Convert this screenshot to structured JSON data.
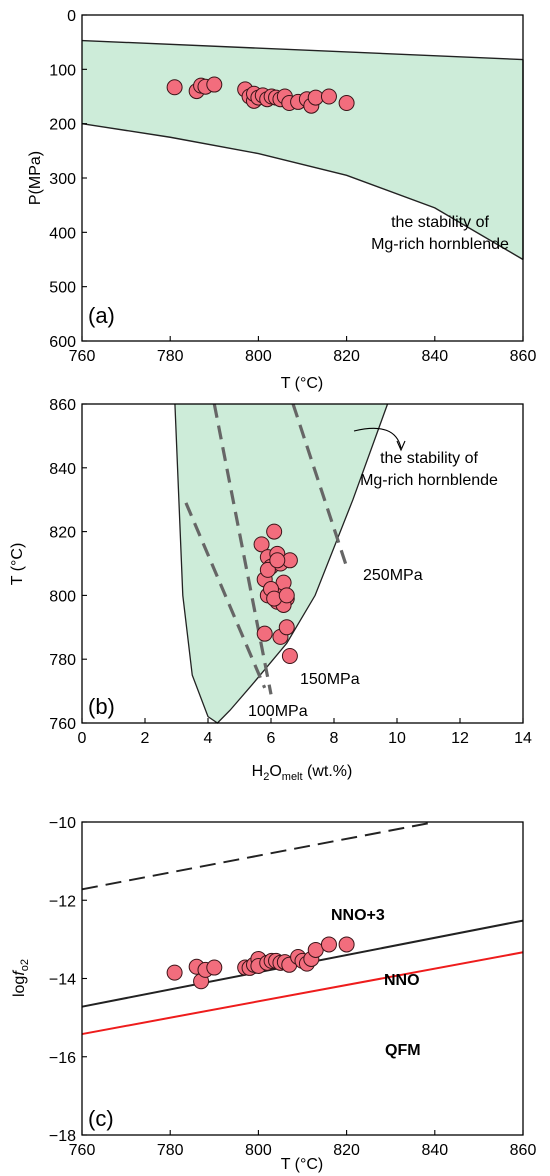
{
  "colors": {
    "field_fill": "#cdecd9",
    "point_fill": "#f26d7d",
    "point_stroke": "#3a1418",
    "dashed_line": "#666666",
    "qfm_line": "#ee1c1c",
    "nno_line": "#222222"
  },
  "chart_data": [
    {
      "type": "scatter",
      "panel": "(a)",
      "xlabel": "T (°C)",
      "ylabel": "P(MPa)",
      "xlim": [
        760,
        860
      ],
      "ylim": [
        0,
        600
      ],
      "y_inverted": true,
      "x_ticks": [
        "760",
        "780",
        "800",
        "820",
        "840",
        "860"
      ],
      "y_ticks": [
        "0",
        "100",
        "200",
        "300",
        "400",
        "500",
        "600"
      ],
      "field": {
        "label": [
          "the stability of",
          "Mg-rich hornblende"
        ],
        "upper_boundary": [
          [
            760,
            47
          ],
          [
            860,
            82
          ]
        ],
        "lower_boundary": [
          [
            760,
            200
          ],
          [
            780,
            225
          ],
          [
            800,
            255
          ],
          [
            820,
            295
          ],
          [
            840,
            355
          ],
          [
            860,
            450
          ]
        ]
      },
      "series": [
        {
          "x": [
            781,
            786,
            787,
            788,
            790,
            797,
            798,
            799,
            799,
            800,
            801,
            802,
            803,
            804,
            805,
            806,
            807,
            809,
            811,
            812,
            813,
            816,
            820
          ],
          "y": [
            133,
            140,
            130,
            132,
            128,
            137,
            150,
            158,
            145,
            152,
            148,
            155,
            150,
            152,
            155,
            150,
            162,
            160,
            155,
            167,
            152,
            150,
            162
          ]
        }
      ]
    },
    {
      "type": "scatter",
      "panel": "(b)",
      "xlabel_main": "H",
      "xlabel_sub1": "2",
      "xlabel_mid": "O",
      "xlabel_sub2": "melt",
      "xlabel_tail": " (wt.%)",
      "ylabel": "T (°C)",
      "xlim": [
        0,
        14
      ],
      "ylim": [
        760,
        860
      ],
      "x_ticks": [
        "0",
        "2",
        "4",
        "6",
        "8",
        "10",
        "12",
        "14"
      ],
      "y_ticks": [
        "760",
        "780",
        "800",
        "820",
        "840",
        "860"
      ],
      "field": {
        "label": [
          "the stability of",
          "Mg-rich hornblende"
        ],
        "boundary": [
          [
            2.95,
            860
          ],
          [
            3.2,
            800
          ],
          [
            3.5,
            775
          ],
          [
            4.0,
            762
          ],
          [
            4.3,
            760
          ],
          [
            4.7,
            764
          ],
          [
            5.4,
            772
          ],
          [
            6.5,
            785
          ],
          [
            7.4,
            800
          ],
          [
            8.6,
            830
          ],
          [
            9.7,
            860
          ]
        ]
      },
      "isobars": [
        {
          "label": "100MPa",
          "points": [
            [
              3.3,
              829
            ],
            [
              5.8,
              771
            ]
          ]
        },
        {
          "label": "150MPa",
          "points": [
            [
              4.2,
              860
            ],
            [
              6.0,
              769
            ]
          ]
        },
        {
          "label": "250MPa",
          "points": [
            [
              6.7,
              860
            ],
            [
              8.4,
              809
            ]
          ]
        }
      ],
      "series": [
        {
          "x": [
            5.7,
            5.9,
            5.8,
            5.9,
            6.1,
            6.0,
            6.2,
            6.3,
            6.3,
            6.4,
            6.2,
            6.5,
            6.6,
            6.0,
            5.8,
            6.3,
            6.5,
            6.6,
            6.4,
            6.1,
            5.9,
            6.2,
            6.5
          ],
          "y": [
            816,
            812,
            805,
            800,
            820,
            809,
            813,
            810,
            801,
            804,
            798,
            799,
            811,
            802,
            788,
            787,
            790,
            781,
            797,
            799,
            808,
            811,
            800
          ]
        }
      ]
    },
    {
      "type": "line",
      "panel": "(c)",
      "xlabel": "T (°C)",
      "ylabel_main": "log",
      "ylabel_italic": "f",
      "ylabel_sub": "o2",
      "xlim": [
        760,
        860
      ],
      "ylim": [
        -18,
        -10
      ],
      "x_ticks": [
        "760",
        "780",
        "800",
        "820",
        "840",
        "860"
      ],
      "y_ticks": [
        "−18",
        "−16",
        "−14",
        "−12",
        "−10"
      ],
      "buffers": [
        {
          "name": "NNO+3",
          "style": "dashed",
          "points": [
            [
              760,
              -11.72
            ],
            [
              840,
              -10.0
            ]
          ]
        },
        {
          "name": "NNO",
          "style": "solid",
          "points": [
            [
              760,
              -14.72
            ],
            [
              860,
              -12.52
            ]
          ]
        },
        {
          "name": "QFM",
          "style": "solid-red",
          "points": [
            [
              760,
              -15.42
            ],
            [
              860,
              -13.33
            ]
          ]
        }
      ],
      "series": [
        {
          "x": [
            781,
            786,
            787,
            788,
            790,
            797,
            798,
            799,
            800,
            800,
            802,
            803,
            804,
            805,
            806,
            807,
            809,
            810,
            811,
            812,
            813,
            816,
            820
          ],
          "y": [
            -13.85,
            -13.7,
            -14.07,
            -13.78,
            -13.72,
            -13.72,
            -13.73,
            -13.65,
            -13.5,
            -13.68,
            -13.6,
            -13.55,
            -13.55,
            -13.6,
            -13.58,
            -13.65,
            -13.45,
            -13.55,
            -13.62,
            -13.5,
            -13.27,
            -13.13,
            -13.13
          ]
        }
      ]
    }
  ]
}
